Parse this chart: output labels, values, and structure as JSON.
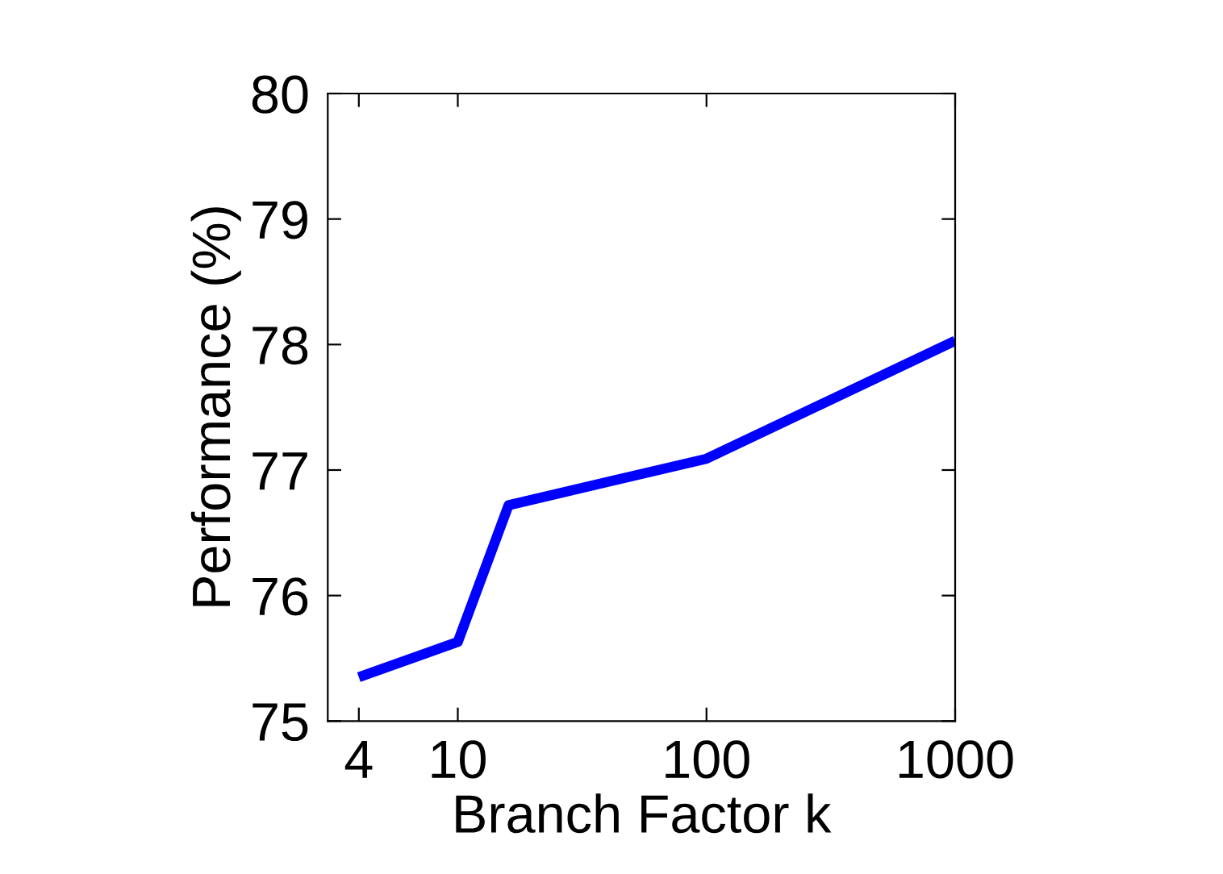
{
  "chart_data": {
    "type": "line",
    "xlabel": "Branch Factor k",
    "ylabel": "Performance (%)",
    "log": "x",
    "x": [
      4,
      10,
      16,
      100,
      1000
    ],
    "series": [
      {
        "color": "#0000ff",
        "values": [
          75.35,
          75.63,
          76.72,
          77.09,
          78.03
        ]
      }
    ],
    "xlim": [
      3,
      1000
    ],
    "xticks": [
      4,
      10,
      100,
      1000
    ],
    "ylim": [
      75,
      80
    ],
    "yticks": [
      75,
      76,
      77,
      78,
      79,
      80
    ],
    "grid": false,
    "legend": false,
    "marker": "none",
    "line_style": "solid"
  }
}
